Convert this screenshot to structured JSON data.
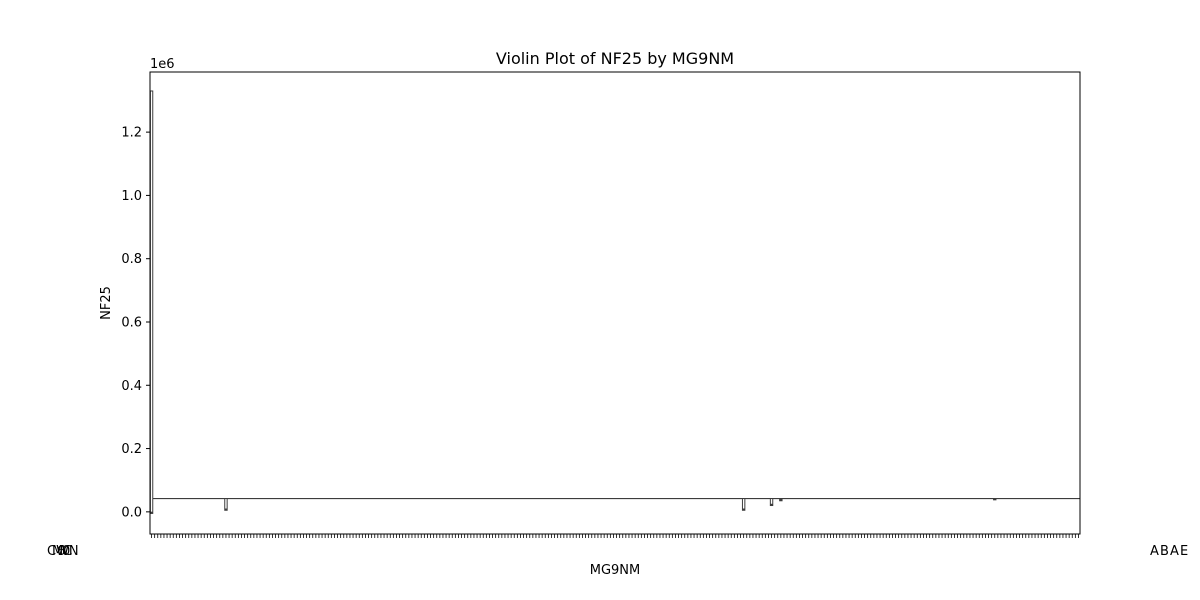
{
  "chart_data": {
    "type": "violin",
    "title": "Violin Plot of NF25 by MG9NM",
    "xlabel": "MG9NM",
    "ylabel": "NF25",
    "y_offset_label": "1e6",
    "y_ticks": [
      0.0,
      0.2,
      0.4,
      0.6,
      0.8,
      1.0,
      1.2
    ],
    "y_tick_labels": [
      "0.0",
      "0.2",
      "0.4",
      "0.6",
      "0.8",
      "1.0",
      "1.2"
    ],
    "ylim": [
      -70000,
      1390000
    ],
    "category_count": 300,
    "baseline_value": 42000,
    "violins": [
      {
        "index": 0,
        "min": -5000,
        "max": 1330000
      },
      {
        "index": 24,
        "min": 5000,
        "max": 42000
      },
      {
        "index": 191,
        "min": 5000,
        "max": 42000
      },
      {
        "index": 200,
        "min": 20000,
        "max": 42000
      },
      {
        "index": 203,
        "min": 35000,
        "max": 42000
      },
      {
        "index": 272,
        "min": 38000,
        "max": 42000
      }
    ],
    "left_tick_labels": [
      "CWN",
      "MC",
      "6",
      "0"
    ],
    "right_tick_labels": [
      "A",
      "B",
      "A",
      "E"
    ],
    "colors": {
      "violin": "#ffffff",
      "edge": "#3c3c3c",
      "axis": "#000000"
    }
  }
}
